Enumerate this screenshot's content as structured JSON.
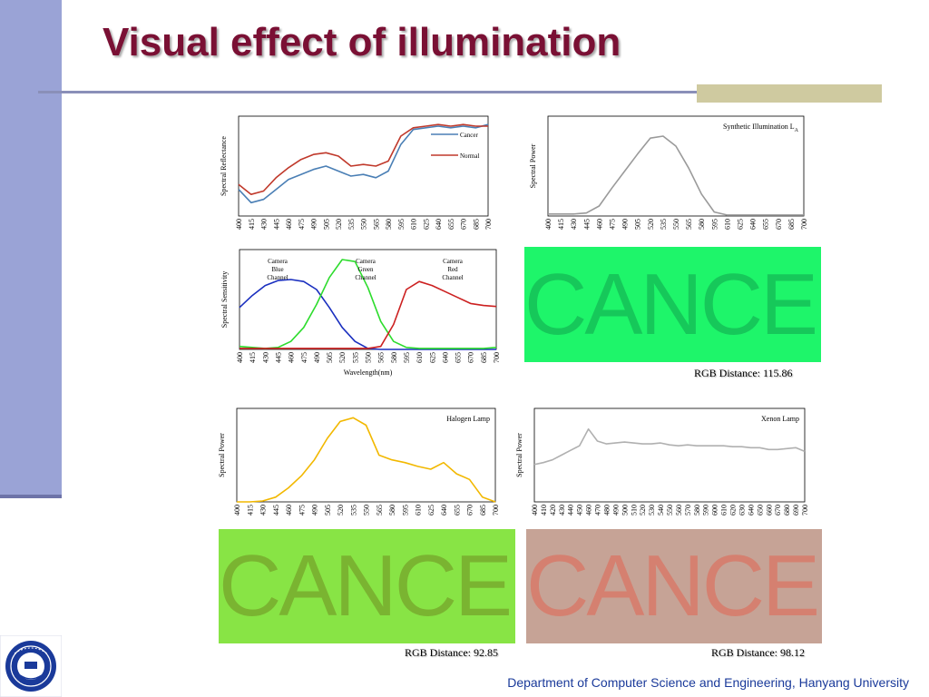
{
  "title": "Visual effect of illumination",
  "footer": "Department of Computer Science and Engineering, Hanyang University",
  "swatches": [
    {
      "word": "CANCER",
      "bg": "#1ef56a",
      "fg": "#16c85a",
      "rgb_distance": "RGB Distance: 115.86"
    },
    {
      "word": "CANCER",
      "bg": "#88e445",
      "fg": "#7ab431",
      "rgb_distance": "RGB Distance: 92.85"
    },
    {
      "word": "CANCER",
      "bg": "#c6a396",
      "fg": "#d58070",
      "rgb_distance": "RGB Distance: 98.12"
    }
  ],
  "chart_data": [
    {
      "type": "line",
      "ylabel": "Spectral Reflectance",
      "xlabel": "",
      "x": [
        400,
        415,
        430,
        445,
        460,
        475,
        490,
        505,
        520,
        535,
        550,
        565,
        580,
        595,
        610,
        625,
        640,
        655,
        670,
        685,
        700
      ],
      "series": [
        {
          "name": "Cancer",
          "color": "#4a7fb5",
          "values": [
            0.46,
            0.38,
            0.4,
            0.46,
            0.52,
            0.55,
            0.58,
            0.6,
            0.57,
            0.54,
            0.55,
            0.53,
            0.57,
            0.73,
            0.82,
            0.83,
            0.84,
            0.83,
            0.84,
            0.83,
            0.85
          ]
        },
        {
          "name": "Normal",
          "color": "#c0392b",
          "values": [
            0.49,
            0.43,
            0.45,
            0.53,
            0.59,
            0.64,
            0.67,
            0.68,
            0.66,
            0.6,
            0.61,
            0.6,
            0.63,
            0.78,
            0.83,
            0.84,
            0.85,
            0.84,
            0.85,
            0.84,
            0.84
          ]
        }
      ],
      "ylim": [
        0.3,
        0.9
      ]
    },
    {
      "type": "line",
      "ylabel": "Spectral Power",
      "xlabel": "",
      "annotation": "Synthetic Illumination L",
      "annotation_sub": "A",
      "x": [
        400,
        415,
        430,
        445,
        460,
        475,
        490,
        505,
        520,
        535,
        550,
        565,
        580,
        595,
        610,
        625,
        640,
        655,
        670,
        685,
        700
      ],
      "series": [
        {
          "name": "",
          "color": "#9a9a9a",
          "values": [
            0.02,
            0.02,
            0.02,
            0.03,
            0.1,
            0.28,
            0.45,
            0.62,
            0.78,
            0.8,
            0.7,
            0.48,
            0.22,
            0.04,
            0.01,
            0.01,
            0.01,
            0.01,
            0.01,
            0.01,
            0.01
          ]
        }
      ],
      "ylim": [
        0,
        1
      ]
    },
    {
      "type": "line",
      "ylabel": "Spectral Sensitivity",
      "xlabel": "Wavelength(nm)",
      "x": [
        400,
        415,
        430,
        445,
        460,
        475,
        490,
        505,
        520,
        535,
        550,
        565,
        580,
        595,
        610,
        625,
        640,
        655,
        670,
        685,
        700
      ],
      "series": [
        {
          "name": "Camera Blue Channel",
          "color": "#1a2fbf",
          "values": [
            0.42,
            0.54,
            0.64,
            0.69,
            0.7,
            0.68,
            0.6,
            0.42,
            0.22,
            0.08,
            0.01,
            0.0,
            0.0,
            0.0,
            0.0,
            0.0,
            0.0,
            0.0,
            0.0,
            0.0,
            0.0
          ]
        },
        {
          "name": "Camera Green Channel",
          "color": "#2ddc2d",
          "values": [
            0.03,
            0.02,
            0.01,
            0.02,
            0.08,
            0.22,
            0.45,
            0.72,
            0.9,
            0.88,
            0.62,
            0.28,
            0.08,
            0.02,
            0.01,
            0.01,
            0.01,
            0.01,
            0.01,
            0.01,
            0.02
          ]
        },
        {
          "name": "Camera Red Channel",
          "color": "#cc2020",
          "values": [
            0.01,
            0.01,
            0.01,
            0.01,
            0.01,
            0.01,
            0.01,
            0.01,
            0.01,
            0.01,
            0.01,
            0.03,
            0.25,
            0.6,
            0.68,
            0.64,
            0.58,
            0.52,
            0.46,
            0.44,
            0.43
          ]
        }
      ],
      "ylim": [
        0,
        1
      ]
    },
    {
      "type": "line",
      "ylabel": "Spectral Power",
      "xlabel": "",
      "annotation": "Halogen Lamp",
      "x": [
        400,
        415,
        430,
        445,
        460,
        475,
        490,
        505,
        520,
        535,
        550,
        565,
        580,
        595,
        610,
        625,
        640,
        655,
        670,
        685,
        700
      ],
      "series": [
        {
          "name": "",
          "color": "#f2b800",
          "values": [
            0.0,
            0.0,
            0.01,
            0.05,
            0.15,
            0.28,
            0.45,
            0.68,
            0.86,
            0.9,
            0.82,
            0.5,
            0.45,
            0.42,
            0.38,
            0.35,
            0.42,
            0.3,
            0.24,
            0.05,
            0.0
          ]
        }
      ],
      "ylim": [
        0,
        1
      ]
    },
    {
      "type": "line",
      "ylabel": "Spectral Power",
      "xlabel": "",
      "annotation": "Xenon Lamp",
      "x": [
        400,
        410,
        420,
        430,
        440,
        450,
        460,
        470,
        480,
        490,
        500,
        510,
        520,
        530,
        540,
        550,
        560,
        570,
        580,
        590,
        600,
        610,
        620,
        630,
        640,
        650,
        660,
        670,
        680,
        690,
        700
      ],
      "series": [
        {
          "name": "",
          "color": "#b0b0b0",
          "values": [
            0.4,
            0.42,
            0.45,
            0.5,
            0.55,
            0.6,
            0.78,
            0.65,
            0.62,
            0.63,
            0.64,
            0.63,
            0.62,
            0.62,
            0.63,
            0.61,
            0.6,
            0.61,
            0.6,
            0.6,
            0.6,
            0.6,
            0.59,
            0.59,
            0.58,
            0.58,
            0.56,
            0.56,
            0.57,
            0.58,
            0.54
          ]
        }
      ],
      "ylim": [
        0,
        1
      ]
    }
  ]
}
